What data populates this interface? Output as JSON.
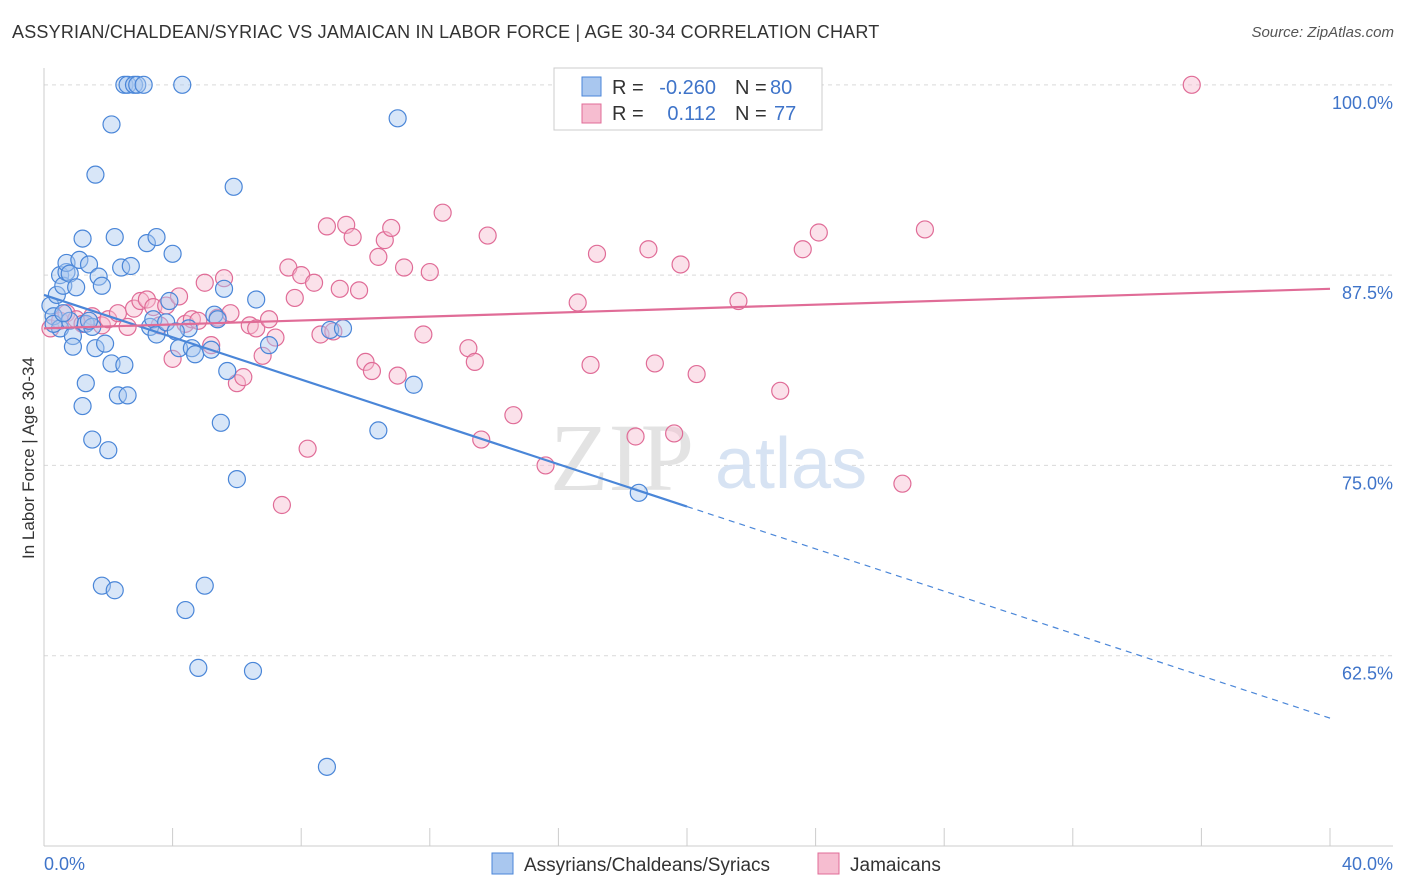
{
  "title": "ASSYRIAN/CHALDEAN/SYRIAC VS JAMAICAN IN LABOR FORCE | AGE 30-34 CORRELATION CHART",
  "source": "Source: ZipAtlas.com",
  "watermark": {
    "zip": "ZIP",
    "atlas": "atlas"
  },
  "colors": {
    "blue": "#4a86d8",
    "blue_fill": "#a9c7ef",
    "pink": "#e06c97",
    "pink_fill": "#f6bdd0",
    "tick_text": "#3f74c9",
    "grid": "#d9d9d9"
  },
  "legend": {
    "r_label": "R =",
    "n_label": "N =",
    "rows": [
      {
        "r": "-0.260",
        "n": "80"
      },
      {
        "r": "0.112",
        "n": "77"
      }
    ]
  },
  "chart_data": {
    "type": "scatter",
    "title": "ASSYRIAN/CHALDEAN/SYRIAC VS JAMAICAN IN LABOR FORCE | AGE 30-34 CORRELATION CHART",
    "xlabel": "",
    "ylabel": "In Labor Force | Age 30-34",
    "xlim": [
      0,
      40
    ],
    "ylim": [
      50,
      101.5
    ],
    "x_tick_labels": [
      "0.0%",
      "40.0%"
    ],
    "y_ticks": [
      100,
      87.5,
      75,
      62.5
    ],
    "y_tick_labels": [
      "100.0%",
      "87.5%",
      "75.0%",
      "62.5%"
    ],
    "grid": true,
    "legend_placement": "top-center",
    "series": [
      {
        "name": "Assyrians/Chaldeans/Syriacs",
        "color": "#4a86d8",
        "trend": {
          "x": [
            0,
            20
          ],
          "y": [
            86.2,
            72.3
          ]
        },
        "trend_dashed": {
          "x": [
            20,
            40
          ],
          "y": [
            72.3,
            58.4
          ]
        },
        "points": [
          [
            0.2,
            85.5
          ],
          [
            0.3,
            84.8
          ],
          [
            0.4,
            86.2
          ],
          [
            0.5,
            84.0
          ],
          [
            0.5,
            87.5
          ],
          [
            0.6,
            86.8
          ],
          [
            0.7,
            87.7
          ],
          [
            0.7,
            88.3
          ],
          [
            0.8,
            87.6
          ],
          [
            0.8,
            84.5
          ],
          [
            0.9,
            83.5
          ],
          [
            0.9,
            82.8
          ],
          [
            1.0,
            86.7
          ],
          [
            1.1,
            88.5
          ],
          [
            1.2,
            89.9
          ],
          [
            1.3,
            84.3
          ],
          [
            1.3,
            80.4
          ],
          [
            1.2,
            78.9
          ],
          [
            1.4,
            88.2
          ],
          [
            1.5,
            84.1
          ],
          [
            1.5,
            76.7
          ],
          [
            1.6,
            82.7
          ],
          [
            1.6,
            94.1
          ],
          [
            1.7,
            87.4
          ],
          [
            1.8,
            86.8
          ],
          [
            1.8,
            67.1
          ],
          [
            1.9,
            83.0
          ],
          [
            2.0,
            76.0
          ],
          [
            2.1,
            81.7
          ],
          [
            2.2,
            90.0
          ],
          [
            2.3,
            79.6
          ],
          [
            2.4,
            88.0
          ],
          [
            2.5,
            81.6
          ],
          [
            2.6,
            79.6
          ],
          [
            2.7,
            88.1
          ],
          [
            2.2,
            66.8
          ],
          [
            2.1,
            97.4
          ],
          [
            2.5,
            100.0
          ],
          [
            2.6,
            100.0
          ],
          [
            2.8,
            100.0
          ],
          [
            2.9,
            100.0
          ],
          [
            3.1,
            100.0
          ],
          [
            3.2,
            89.6
          ],
          [
            3.3,
            84.1
          ],
          [
            3.4,
            84.6
          ],
          [
            3.5,
            90.0
          ],
          [
            3.5,
            83.6
          ],
          [
            3.8,
            84.4
          ],
          [
            3.9,
            85.8
          ],
          [
            4.0,
            88.9
          ],
          [
            4.2,
            82.7
          ],
          [
            4.3,
            100.0
          ],
          [
            4.4,
            65.5
          ],
          [
            4.5,
            84.0
          ],
          [
            4.6,
            82.7
          ],
          [
            4.7,
            82.3
          ],
          [
            4.8,
            61.7
          ],
          [
            5.0,
            67.1
          ],
          [
            5.2,
            82.6
          ],
          [
            5.3,
            84.9
          ],
          [
            5.5,
            77.8
          ],
          [
            5.6,
            86.6
          ],
          [
            5.7,
            81.2
          ],
          [
            5.9,
            93.3
          ],
          [
            6.0,
            74.1
          ],
          [
            6.5,
            61.5
          ],
          [
            6.6,
            85.9
          ],
          [
            7.0,
            82.9
          ],
          [
            8.9,
            83.9
          ],
          [
            8.8,
            55.2
          ],
          [
            9.3,
            84.0
          ],
          [
            10.4,
            77.3
          ],
          [
            11.0,
            97.8
          ],
          [
            11.5,
            80.3
          ],
          [
            18.5,
            73.2
          ],
          [
            0.3,
            84.3
          ],
          [
            0.6,
            85.0
          ],
          [
            1.4,
            84.5
          ],
          [
            4.1,
            83.8
          ],
          [
            5.4,
            84.6
          ]
        ]
      },
      {
        "name": "Jamaicans",
        "color": "#e06c97",
        "trend": {
          "x": [
            0,
            40
          ],
          "y": [
            84.0,
            86.6
          ]
        },
        "points": [
          [
            0.2,
            84.0
          ],
          [
            0.5,
            84.5
          ],
          [
            0.7,
            85.0
          ],
          [
            1.0,
            84.6
          ],
          [
            1.2,
            84.3
          ],
          [
            1.5,
            84.8
          ],
          [
            1.8,
            84.2
          ],
          [
            2.0,
            84.6
          ],
          [
            2.3,
            85.0
          ],
          [
            2.6,
            84.1
          ],
          [
            2.8,
            85.3
          ],
          [
            3.0,
            85.8
          ],
          [
            3.2,
            85.9
          ],
          [
            3.4,
            85.4
          ],
          [
            3.6,
            84.2
          ],
          [
            3.8,
            85.5
          ],
          [
            4.0,
            82.0
          ],
          [
            4.2,
            86.1
          ],
          [
            4.4,
            84.3
          ],
          [
            4.6,
            84.6
          ],
          [
            4.8,
            84.5
          ],
          [
            5.0,
            87.0
          ],
          [
            5.2,
            82.9
          ],
          [
            5.4,
            84.7
          ],
          [
            5.6,
            87.3
          ],
          [
            5.8,
            85.0
          ],
          [
            6.0,
            80.4
          ],
          [
            6.2,
            80.8
          ],
          [
            6.4,
            84.2
          ],
          [
            6.6,
            84.0
          ],
          [
            6.8,
            82.2
          ],
          [
            7.0,
            84.6
          ],
          [
            7.2,
            83.4
          ],
          [
            7.4,
            72.4
          ],
          [
            7.6,
            88.0
          ],
          [
            7.8,
            86.0
          ],
          [
            8.0,
            87.5
          ],
          [
            8.2,
            76.1
          ],
          [
            8.4,
            87.0
          ],
          [
            8.6,
            83.6
          ],
          [
            8.8,
            90.7
          ],
          [
            9.0,
            83.8
          ],
          [
            9.2,
            86.6
          ],
          [
            9.4,
            90.8
          ],
          [
            9.6,
            90.0
          ],
          [
            9.8,
            86.5
          ],
          [
            10.0,
            81.8
          ],
          [
            10.2,
            81.2
          ],
          [
            10.4,
            88.7
          ],
          [
            10.6,
            89.8
          ],
          [
            10.8,
            90.6
          ],
          [
            11.0,
            80.9
          ],
          [
            11.2,
            88.0
          ],
          [
            11.8,
            83.6
          ],
          [
            12.0,
            87.7
          ],
          [
            12.4,
            91.6
          ],
          [
            13.2,
            82.7
          ],
          [
            13.4,
            81.8
          ],
          [
            13.6,
            76.7
          ],
          [
            13.8,
            90.1
          ],
          [
            14.6,
            78.3
          ],
          [
            15.6,
            75.0
          ],
          [
            16.6,
            85.7
          ],
          [
            17.0,
            81.6
          ],
          [
            17.2,
            88.9
          ],
          [
            18.4,
            76.9
          ],
          [
            18.8,
            89.2
          ],
          [
            19.0,
            81.7
          ],
          [
            19.6,
            77.1
          ],
          [
            19.8,
            88.2
          ],
          [
            20.3,
            81.0
          ],
          [
            21.6,
            85.8
          ],
          [
            22.9,
            79.9
          ],
          [
            23.6,
            89.2
          ],
          [
            24.1,
            90.3
          ],
          [
            26.7,
            73.8
          ],
          [
            27.4,
            90.5
          ]
        ],
        "extra_points": [
          [
            35.7,
            100.0
          ]
        ]
      }
    ]
  },
  "bottom_legend": [
    {
      "label": "Assyrians/Chaldeans/Syriacs"
    },
    {
      "label": "Jamaicans"
    }
  ]
}
